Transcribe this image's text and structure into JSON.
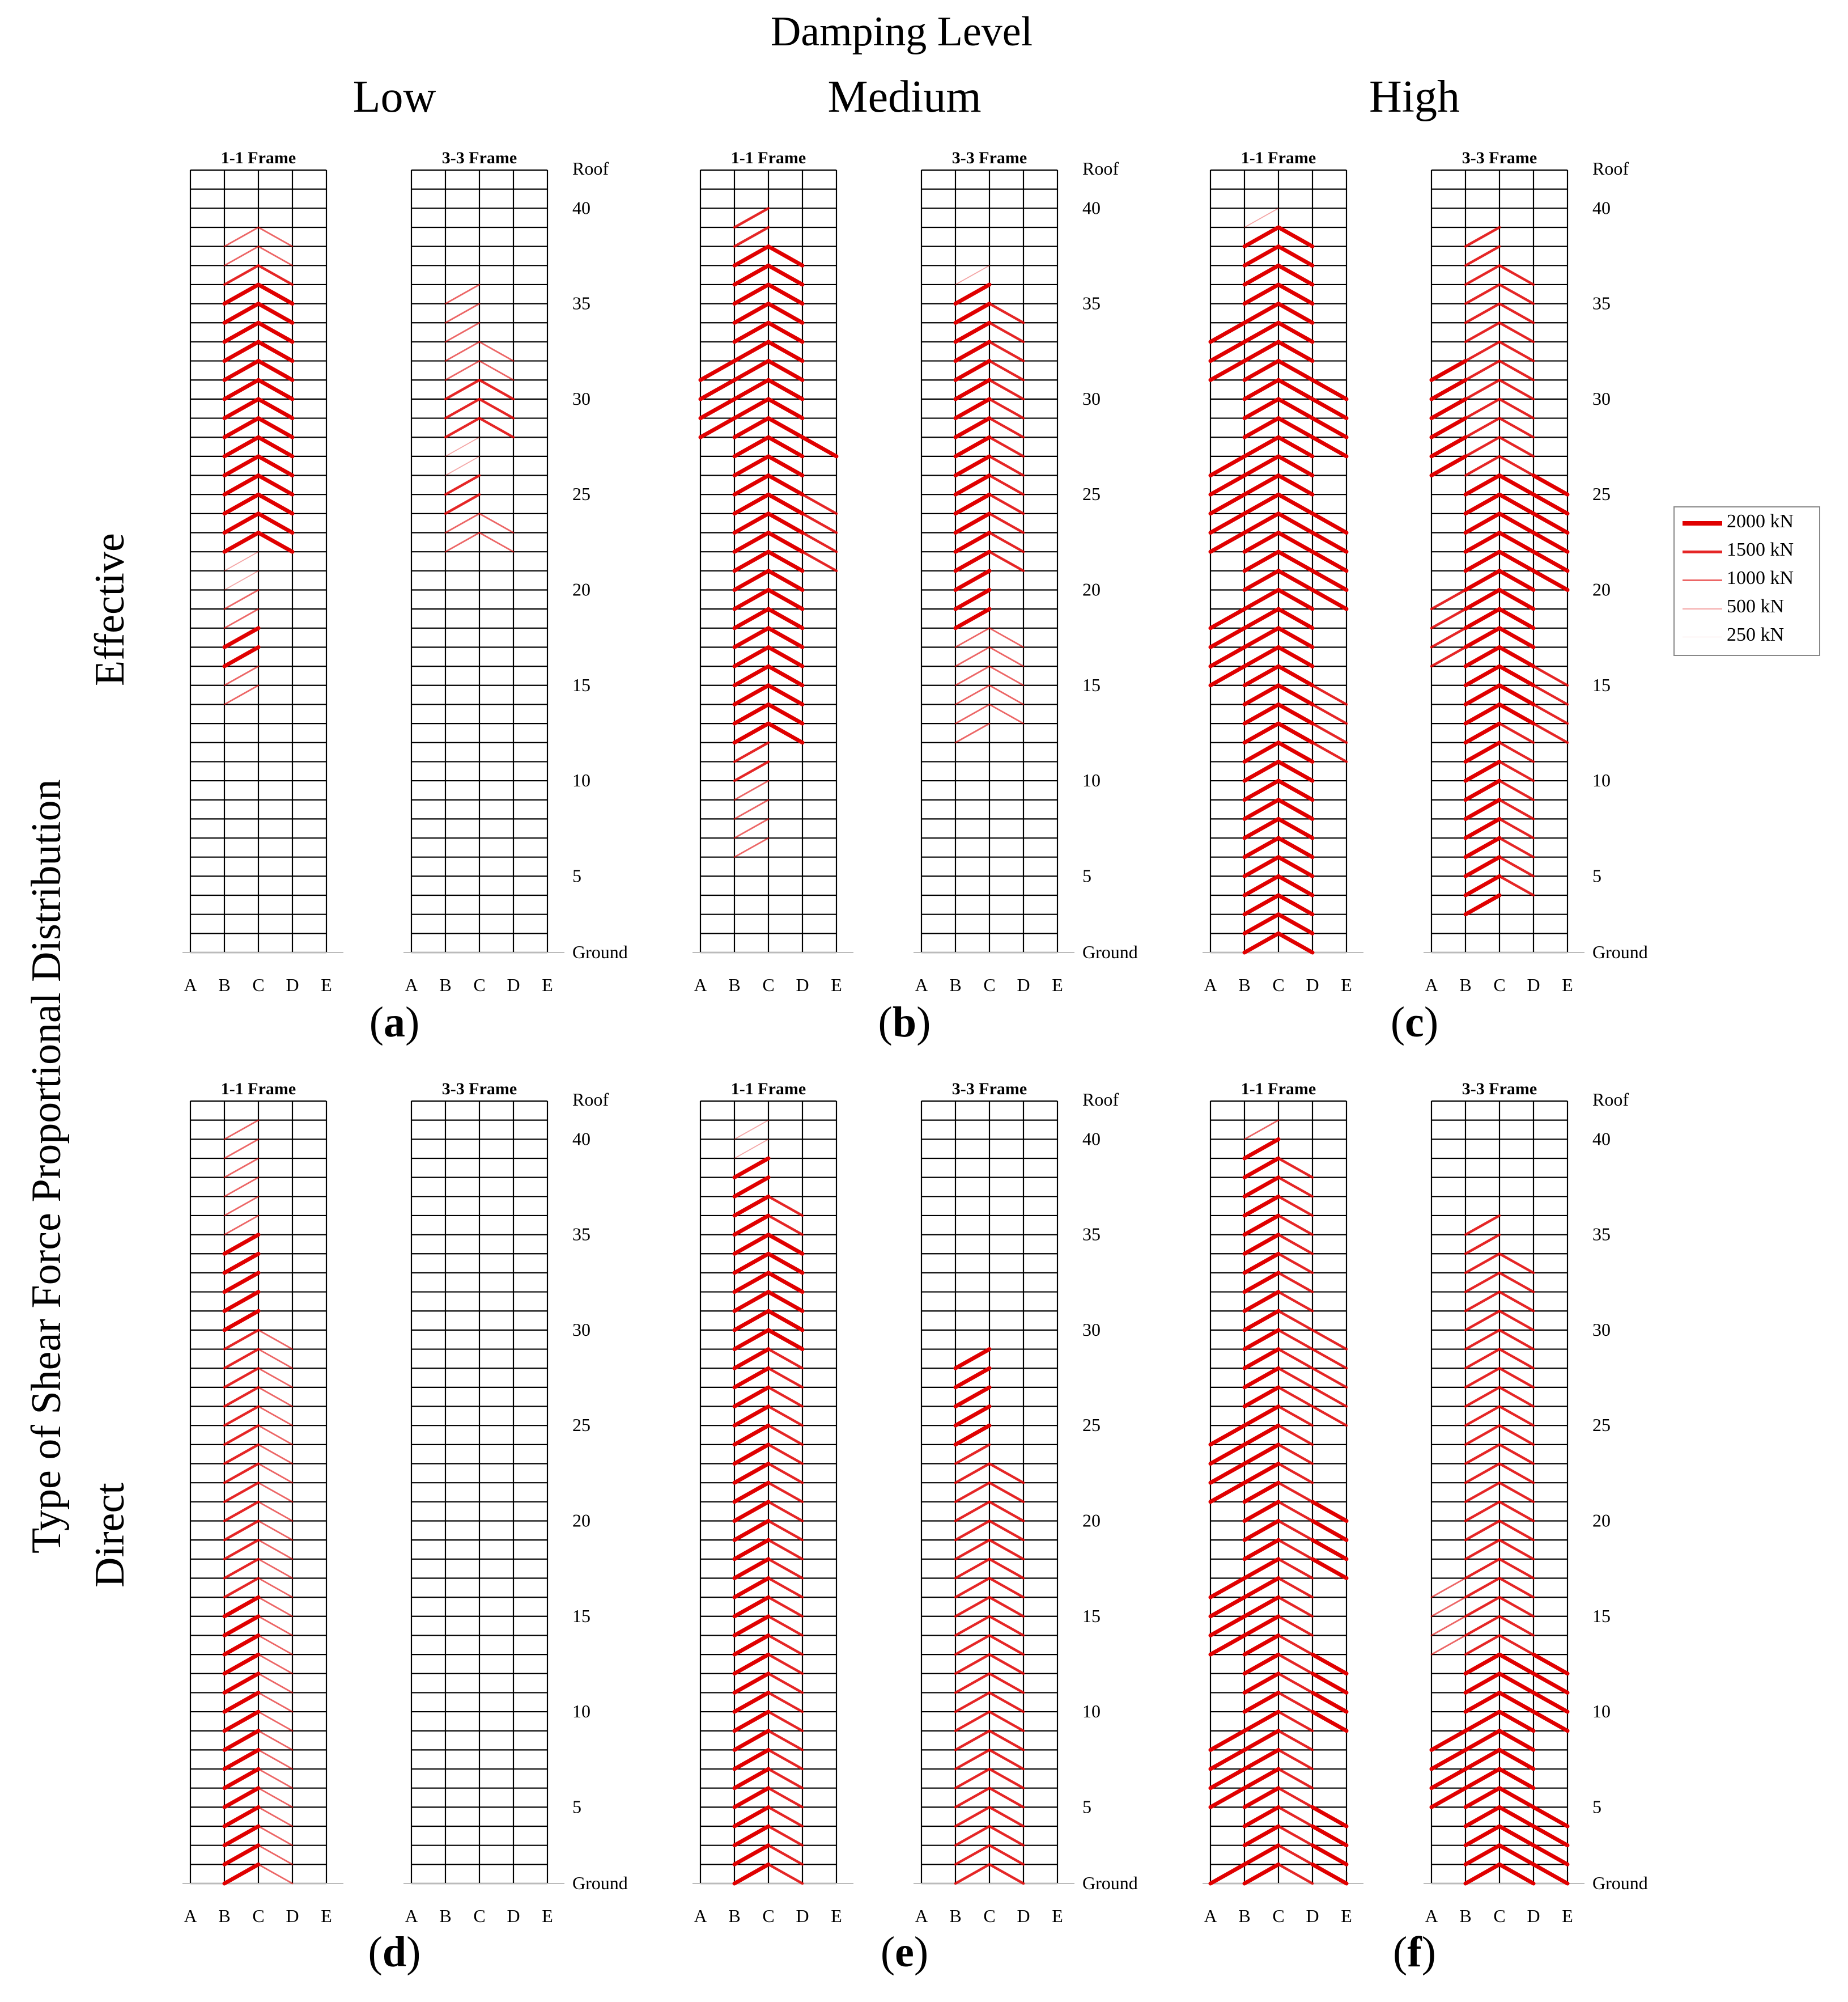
{
  "figure": {
    "top_title": "Damping Level",
    "damping_levels": [
      "Low",
      "Medium",
      "High"
    ],
    "side_title": "Type of Shear Force Proportional Distribution",
    "row_labels": [
      "Effective",
      "Direct"
    ],
    "panel_labels": [
      {
        "letter": "a",
        "open": "(",
        "close": ")"
      },
      {
        "letter": "b",
        "open": "(",
        "close": ")"
      },
      {
        "letter": "c",
        "open": "(",
        "close": ")"
      },
      {
        "letter": "d",
        "open": "(",
        "close": ")"
      },
      {
        "letter": "e",
        "open": "(",
        "close": ")"
      },
      {
        "letter": "f",
        "open": "(",
        "close": ")"
      }
    ],
    "frame_titles": [
      "1-1 Frame",
      "3-3 Frame"
    ],
    "column_axis_labels": [
      "A",
      "B",
      "C",
      "D",
      "E"
    ],
    "floor_axis_labels": [
      "Roof",
      "40",
      "35",
      "30",
      "25",
      "20",
      "15",
      "10",
      "5",
      "Ground"
    ]
  },
  "legend": {
    "entries": [
      {
        "label": "2000 kN",
        "force_kN": 2000
      },
      {
        "label": "1500 kN",
        "force_kN": 1500
      },
      {
        "label": "1000 kN",
        "force_kN": 1000
      },
      {
        "label": "500 kN",
        "force_kN": 500
      },
      {
        "label": "250 kN",
        "force_kN": 250
      }
    ],
    "line_color": "#e00000"
  },
  "chart_data": {
    "type": "diagram",
    "description_units": "story number (1 = ground story, 41 = top story); bays AB, BC, CD, DE; force level in kN",
    "grid": {
      "stories": 41,
      "bays": [
        "AB",
        "BC",
        "CD",
        "DE"
      ]
    },
    "panels": [
      {
        "id": "a",
        "damping": "Low",
        "distribution": "Effective",
        "frames": {
          "1-1": [
            {
              "bay": "BC",
              "dir": "up",
              "from": 37,
              "to": 38,
              "force": 1000
            },
            {
              "bay": "CD",
              "dir": "down",
              "from": 37,
              "to": 38,
              "force": 1000
            },
            {
              "bay": "BC",
              "dir": "up",
              "from": 36,
              "to": 36,
              "force": 1500
            },
            {
              "bay": "CD",
              "dir": "down",
              "from": 36,
              "to": 36,
              "force": 1500
            },
            {
              "bay": "BC",
              "dir": "up",
              "from": 22,
              "to": 35,
              "force": 2000
            },
            {
              "bay": "CD",
              "dir": "down",
              "from": 22,
              "to": 35,
              "force": 2000
            },
            {
              "bay": "BC",
              "dir": "up",
              "from": 20,
              "to": 21,
              "force": 500
            },
            {
              "bay": "BC",
              "dir": "up",
              "from": 18,
              "to": 19,
              "force": 1000
            },
            {
              "bay": "BC",
              "dir": "up",
              "from": 16,
              "to": 17,
              "force": 2000
            },
            {
              "bay": "BC",
              "dir": "up",
              "from": 14,
              "to": 15,
              "force": 1000
            }
          ],
          "3-3": [
            {
              "bay": "BC",
              "dir": "up",
              "from": 34,
              "to": 35,
              "force": 1000
            },
            {
              "bay": "BC",
              "dir": "up",
              "from": 31,
              "to": 33,
              "force": 1000
            },
            {
              "bay": "CD",
              "dir": "down",
              "from": 31,
              "to": 32,
              "force": 1000
            },
            {
              "bay": "BC",
              "dir": "up",
              "from": 28,
              "to": 30,
              "force": 1500
            },
            {
              "bay": "CD",
              "dir": "down",
              "from": 28,
              "to": 30,
              "force": 1500
            },
            {
              "bay": "BC",
              "dir": "up",
              "from": 26,
              "to": 27,
              "force": 500
            },
            {
              "bay": "BC",
              "dir": "up",
              "from": 24,
              "to": 25,
              "force": 1500
            },
            {
              "bay": "BC",
              "dir": "up",
              "from": 22,
              "to": 23,
              "force": 1000
            },
            {
              "bay": "CD",
              "dir": "down",
              "from": 22,
              "to": 23,
              "force": 1000
            }
          ]
        }
      },
      {
        "id": "b",
        "damping": "Medium",
        "distribution": "Effective",
        "frames": {
          "1-1": [
            {
              "bay": "BC",
              "dir": "up",
              "from": 38,
              "to": 39,
              "force": 1500
            },
            {
              "bay": "BC",
              "dir": "up",
              "from": 12,
              "to": 37,
              "force": 2000
            },
            {
              "bay": "CD",
              "dir": "down",
              "from": 12,
              "to": 37,
              "force": 2000
            },
            {
              "bay": "AB",
              "dir": "up",
              "from": 28,
              "to": 31,
              "force": 2000
            },
            {
              "bay": "DE",
              "dir": "down",
              "from": 27,
              "to": 27,
              "force": 2000
            },
            {
              "bay": "DE",
              "dir": "down",
              "from": 21,
              "to": 24,
              "force": 1500
            },
            {
              "bay": "BC",
              "dir": "up",
              "from": 10,
              "to": 11,
              "force": 1500
            },
            {
              "bay": "BC",
              "dir": "up",
              "from": 6,
              "to": 9,
              "force": 1000
            }
          ],
          "3-3": [
            {
              "bay": "BC",
              "dir": "up",
              "from": 36,
              "to": 36,
              "force": 500
            },
            {
              "bay": "BC",
              "dir": "up",
              "from": 21,
              "to": 35,
              "force": 2000
            },
            {
              "bay": "CD",
              "dir": "down",
              "from": 21,
              "to": 34,
              "force": 1500
            },
            {
              "bay": "BC",
              "dir": "up",
              "from": 18,
              "to": 20,
              "force": 2000
            },
            {
              "bay": "BC",
              "dir": "up",
              "from": 12,
              "to": 17,
              "force": 1000
            },
            {
              "bay": "CD",
              "dir": "down",
              "from": 13,
              "to": 17,
              "force": 1000
            }
          ]
        }
      },
      {
        "id": "c",
        "damping": "High",
        "distribution": "Effective",
        "frames": {
          "1-1": [
            {
              "bay": "BC",
              "dir": "up",
              "from": 39,
              "to": 39,
              "force": 500
            },
            {
              "bay": "BC",
              "dir": "up",
              "from": 1,
              "to": 38,
              "force": 2000
            },
            {
              "bay": "CD",
              "dir": "down",
              "from": 1,
              "to": 38,
              "force": 2000
            },
            {
              "bay": "AB",
              "dir": "up",
              "from": 31,
              "to": 33,
              "force": 2000
            },
            {
              "bay": "DE",
              "dir": "down",
              "from": 27,
              "to": 30,
              "force": 2000
            },
            {
              "bay": "AB",
              "dir": "up",
              "from": 22,
              "to": 26,
              "force": 2000
            },
            {
              "bay": "DE",
              "dir": "down",
              "from": 19,
              "to": 23,
              "force": 2000
            },
            {
              "bay": "AB",
              "dir": "up",
              "from": 15,
              "to": 18,
              "force": 2000
            },
            {
              "bay": "DE",
              "dir": "down",
              "from": 11,
              "to": 14,
              "force": 1500
            }
          ],
          "3-3": [
            {
              "bay": "BC",
              "dir": "up",
              "from": 37,
              "to": 38,
              "force": 1500
            },
            {
              "bay": "BC",
              "dir": "up",
              "from": 26,
              "to": 36,
              "force": 1500
            },
            {
              "bay": "CD",
              "dir": "down",
              "from": 26,
              "to": 36,
              "force": 1500
            },
            {
              "bay": "AB",
              "dir": "up",
              "from": 26,
              "to": 31,
              "force": 2000
            },
            {
              "bay": "BC",
              "dir": "up",
              "from": 13,
              "to": 25,
              "force": 2000
            },
            {
              "bay": "CD",
              "dir": "down",
              "from": 13,
              "to": 25,
              "force": 2000
            },
            {
              "bay": "DE",
              "dir": "down",
              "from": 20,
              "to": 25,
              "force": 2000
            },
            {
              "bay": "AB",
              "dir": "up",
              "from": 16,
              "to": 19,
              "force": 1500
            },
            {
              "bay": "DE",
              "dir": "down",
              "from": 12,
              "to": 15,
              "force": 1500
            },
            {
              "bay": "BC",
              "dir": "up",
              "from": 3,
              "to": 12,
              "force": 2000
            },
            {
              "bay": "CD",
              "dir": "down",
              "from": 4,
              "to": 12,
              "force": 1500
            }
          ]
        }
      },
      {
        "id": "d",
        "damping": "Low",
        "distribution": "Direct",
        "frames": {
          "1-1": [
            {
              "bay": "BC",
              "dir": "up",
              "from": 35,
              "to": 40,
              "force": 1000
            },
            {
              "bay": "BC",
              "dir": "up",
              "from": 30,
              "to": 34,
              "force": 2000
            },
            {
              "bay": "BC",
              "dir": "up",
              "from": 1,
              "to": 29,
              "force": 1500
            },
            {
              "bay": "CD",
              "dir": "down",
              "from": 1,
              "to": 29,
              "force": 1000
            },
            {
              "bay": "BC",
              "dir": "up",
              "from": 1,
              "to": 15,
              "force": 2000
            }
          ],
          "3-3": []
        }
      },
      {
        "id": "e",
        "damping": "Medium",
        "distribution": "Direct",
        "frames": {
          "1-1": [
            {
              "bay": "BC",
              "dir": "up",
              "from": 39,
              "to": 40,
              "force": 500
            },
            {
              "bay": "BC",
              "dir": "up",
              "from": 1,
              "to": 38,
              "force": 2000
            },
            {
              "bay": "CD",
              "dir": "down",
              "from": 1,
              "to": 36,
              "force": 1500
            },
            {
              "bay": "CD",
              "dir": "down",
              "from": 29,
              "to": 34,
              "force": 2000
            }
          ],
          "3-3": [
            {
              "bay": "BC",
              "dir": "up",
              "from": 24,
              "to": 28,
              "force": 2000
            },
            {
              "bay": "BC",
              "dir": "up",
              "from": 1,
              "to": 23,
              "force": 1500
            },
            {
              "bay": "CD",
              "dir": "down",
              "from": 1,
              "to": 22,
              "force": 1500
            }
          ]
        }
      },
      {
        "id": "f",
        "damping": "High",
        "distribution": "Direct",
        "frames": {
          "1-1": [
            {
              "bay": "BC",
              "dir": "up",
              "from": 40,
              "to": 40,
              "force": 1000
            },
            {
              "bay": "BC",
              "dir": "up",
              "from": 1,
              "to": 39,
              "force": 2000
            },
            {
              "bay": "CD",
              "dir": "down",
              "from": 1,
              "to": 38,
              "force": 1500
            },
            {
              "bay": "DE",
              "dir": "down",
              "from": 25,
              "to": 29,
              "force": 1500
            },
            {
              "bay": "AB",
              "dir": "up",
              "from": 21,
              "to": 24,
              "force": 2000
            },
            {
              "bay": "DE",
              "dir": "down",
              "from": 17,
              "to": 20,
              "force": 2000
            },
            {
              "bay": "AB",
              "dir": "up",
              "from": 13,
              "to": 16,
              "force": 2000
            },
            {
              "bay": "DE",
              "dir": "down",
              "from": 9,
              "to": 12,
              "force": 2000
            },
            {
              "bay": "AB",
              "dir": "up",
              "from": 5,
              "to": 8,
              "force": 2000
            },
            {
              "bay": "DE",
              "dir": "down",
              "from": 1,
              "to": 4,
              "force": 2000
            },
            {
              "bay": "AB",
              "dir": "up",
              "from": 1,
              "to": 1,
              "force": 2000
            }
          ],
          "3-3": [
            {
              "bay": "BC",
              "dir": "up",
              "from": 35,
              "to": 35,
              "force": 1500
            },
            {
              "bay": "BC",
              "dir": "up",
              "from": 13,
              "to": 34,
              "force": 1500
            },
            {
              "bay": "CD",
              "dir": "down",
              "from": 13,
              "to": 33,
              "force": 1500
            },
            {
              "bay": "BC",
              "dir": "up",
              "from": 1,
              "to": 12,
              "force": 2000
            },
            {
              "bay": "CD",
              "dir": "down",
              "from": 1,
              "to": 12,
              "force": 2000
            },
            {
              "bay": "AB",
              "dir": "up",
              "from": 13,
              "to": 16,
              "force": 1000
            },
            {
              "bay": "DE",
              "dir": "down",
              "from": 9,
              "to": 12,
              "force": 2000
            },
            {
              "bay": "AB",
              "dir": "up",
              "from": 5,
              "to": 8,
              "force": 2000
            },
            {
              "bay": "DE",
              "dir": "down",
              "from": 1,
              "to": 4,
              "force": 2000
            }
          ]
        }
      }
    ]
  }
}
